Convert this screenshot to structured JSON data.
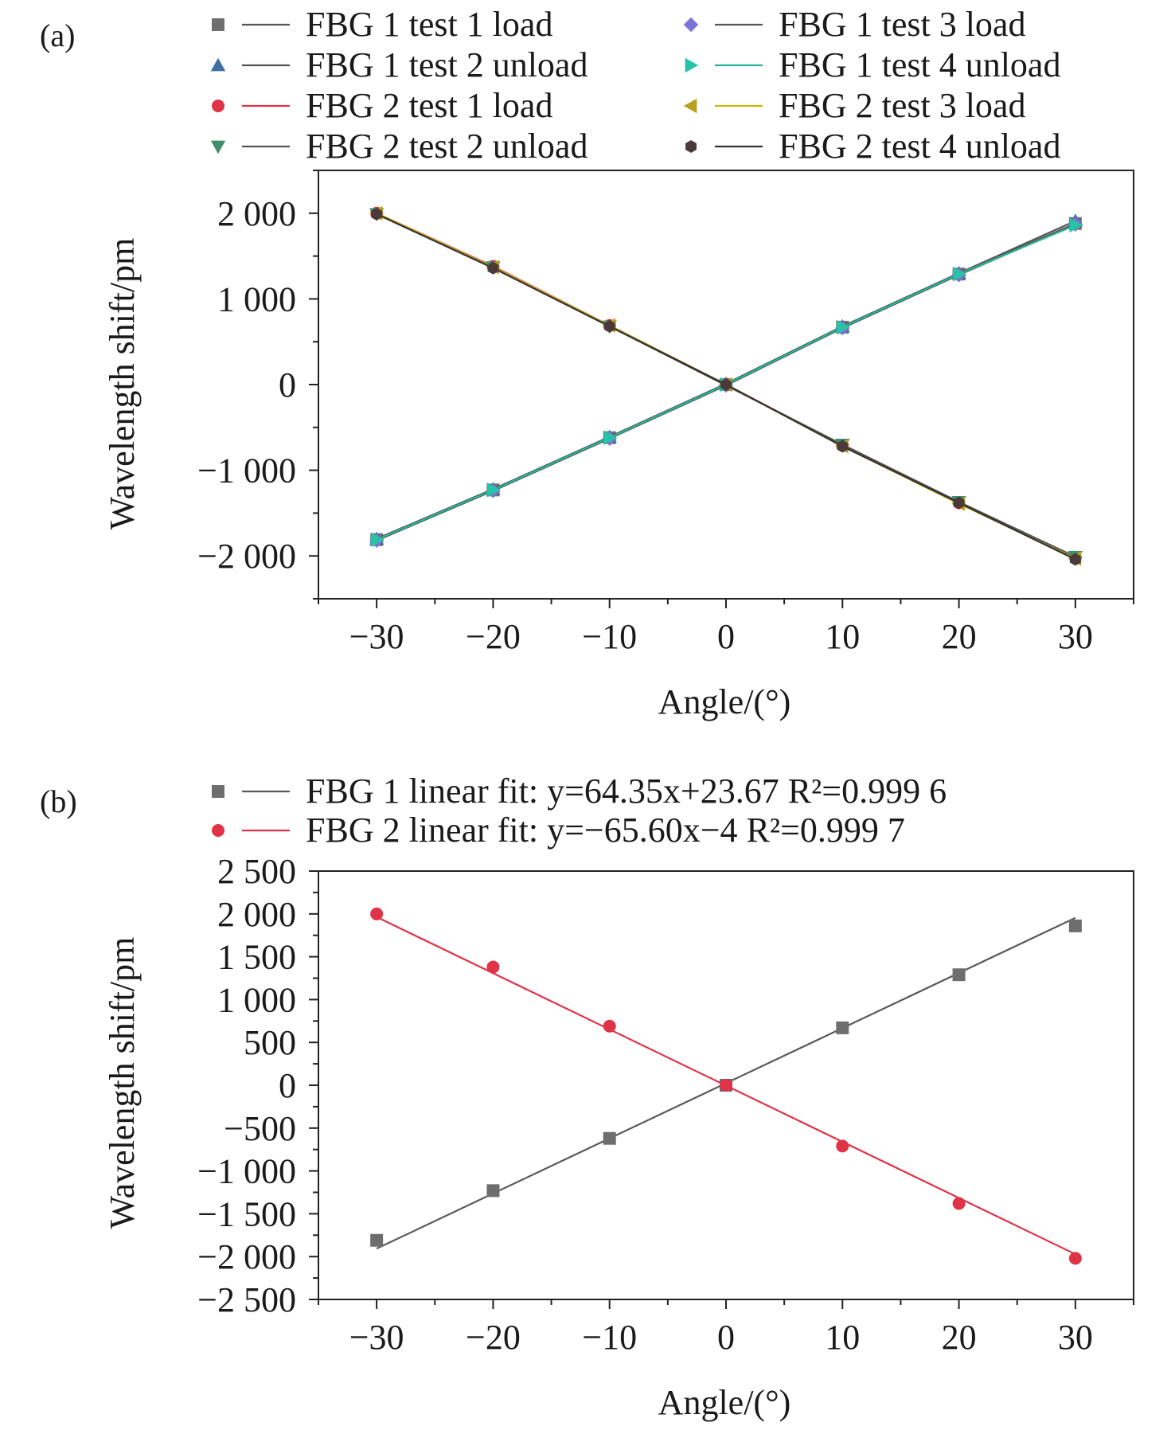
{
  "colors": {
    "axis": "#222222",
    "fbg1": "#5a5a5a",
    "fbg2": "#e03348"
  },
  "chart_data": [
    {
      "panel_label": "(a)",
      "type": "scatter",
      "xlabel": "Angle/(°)",
      "ylabel": "Wavelength shift/pm",
      "xlim": [
        -35,
        35
      ],
      "ylim": [
        -2500,
        2500
      ],
      "xticks": [
        -30,
        -20,
        -10,
        0,
        10,
        20,
        30
      ],
      "xtick_labels": [
        "−30",
        "−20",
        "−10",
        "0",
        "10",
        "20",
        "30"
      ],
      "yticks": [
        -2000,
        -1000,
        0,
        1000,
        2000
      ],
      "ytick_labels": [
        "−2 000",
        "−1 000",
        "0",
        "1 000",
        "2 000"
      ],
      "grid": false,
      "legend_position": "top",
      "x": [
        -30,
        -20,
        -10,
        0,
        10,
        20,
        30
      ],
      "series": [
        {
          "name": "FBG 1 test 1 load",
          "marker": "square",
          "marker_color": "#6e6e6e",
          "line_color": "#555555",
          "values": [
            -1810,
            -1230,
            -620,
            0,
            670,
            1290,
            1880
          ]
        },
        {
          "name": "FBG 1 test 2 unload",
          "marker": "triangle-up",
          "marker_color": "#3d6fa3",
          "line_color": "#555555",
          "values": [
            -1800,
            -1220,
            -610,
            10,
            680,
            1300,
            1910
          ]
        },
        {
          "name": "FBG 2 test 1 load",
          "marker": "circle",
          "marker_color": "#e03348",
          "line_color": "#e03348",
          "values": [
            2000,
            1380,
            690,
            0,
            -710,
            -1380,
            -2020
          ]
        },
        {
          "name": "FBG 2 test 2 unload",
          "marker": "triangle-down",
          "marker_color": "#3f8f6e",
          "line_color": "#555555",
          "values": [
            1990,
            1370,
            680,
            -10,
            -700,
            -1370,
            -2010
          ]
        },
        {
          "name": "FBG 1 test 3 load",
          "marker": "diamond",
          "marker_color": "#7b74d6",
          "line_color": "#555555",
          "values": [
            -1820,
            -1240,
            -630,
            -10,
            660,
            1280,
            1870
          ]
        },
        {
          "name": "FBG 1 test 4 unload",
          "marker": "triangle-right",
          "marker_color": "#26c4a4",
          "line_color": "#26b597",
          "values": [
            -1810,
            -1230,
            -620,
            0,
            670,
            1290,
            1860
          ]
        },
        {
          "name": "FBG 2 test 3 load",
          "marker": "triangle-left",
          "marker_color": "#b8a020",
          "line_color": "#c9b400",
          "values": [
            2000,
            1370,
            690,
            0,
            -720,
            -1390,
            -2030
          ]
        },
        {
          "name": "FBG 2 test 4 unload",
          "marker": "hexagon",
          "marker_color": "#4a3a3a",
          "line_color": "#333333",
          "values": [
            1990,
            1360,
            680,
            0,
            -720,
            -1380,
            -2040
          ]
        }
      ]
    },
    {
      "panel_label": "(b)",
      "type": "scatter",
      "xlabel": "Angle/(°)",
      "ylabel": "Wavelength shift/pm",
      "xlim": [
        -35,
        35
      ],
      "ylim": [
        -2500,
        2500
      ],
      "xticks": [
        -30,
        -20,
        -10,
        0,
        10,
        20,
        30
      ],
      "xtick_labels": [
        "−30",
        "−20",
        "−10",
        "0",
        "10",
        "20",
        "30"
      ],
      "yticks": [
        -2500,
        -2000,
        -1500,
        -1000,
        -500,
        0,
        500,
        1000,
        1500,
        2000,
        2500
      ],
      "ytick_labels": [
        "−2 500",
        "−2 000",
        "−1 500",
        "−1 000",
        "−500",
        "0",
        "500",
        "1 000",
        "1 500",
        "2 000",
        "2 500"
      ],
      "grid": false,
      "legend_position": "top",
      "x": [
        -30,
        -20,
        -10,
        0,
        10,
        20,
        30
      ],
      "series": [
        {
          "name": "FBG 1 linear fit: y=64.35x+23.67 R²=0.999 6",
          "marker": "square",
          "marker_color": "#6e6e6e",
          "line_color": "#5a5a5a",
          "values": [
            -1810,
            -1230,
            -620,
            0,
            670,
            1290,
            1860
          ],
          "fit": {
            "slope": 64.35,
            "intercept": 23.67
          }
        },
        {
          "name": "FBG 2 linear fit: y=−65.60x−4 R²=0.999 7",
          "marker": "circle",
          "marker_color": "#e03348",
          "line_color": "#e03348",
          "values": [
            2000,
            1380,
            690,
            0,
            -710,
            -1380,
            -2020
          ],
          "fit": {
            "slope": -65.6,
            "intercept": -4
          }
        }
      ]
    }
  ]
}
